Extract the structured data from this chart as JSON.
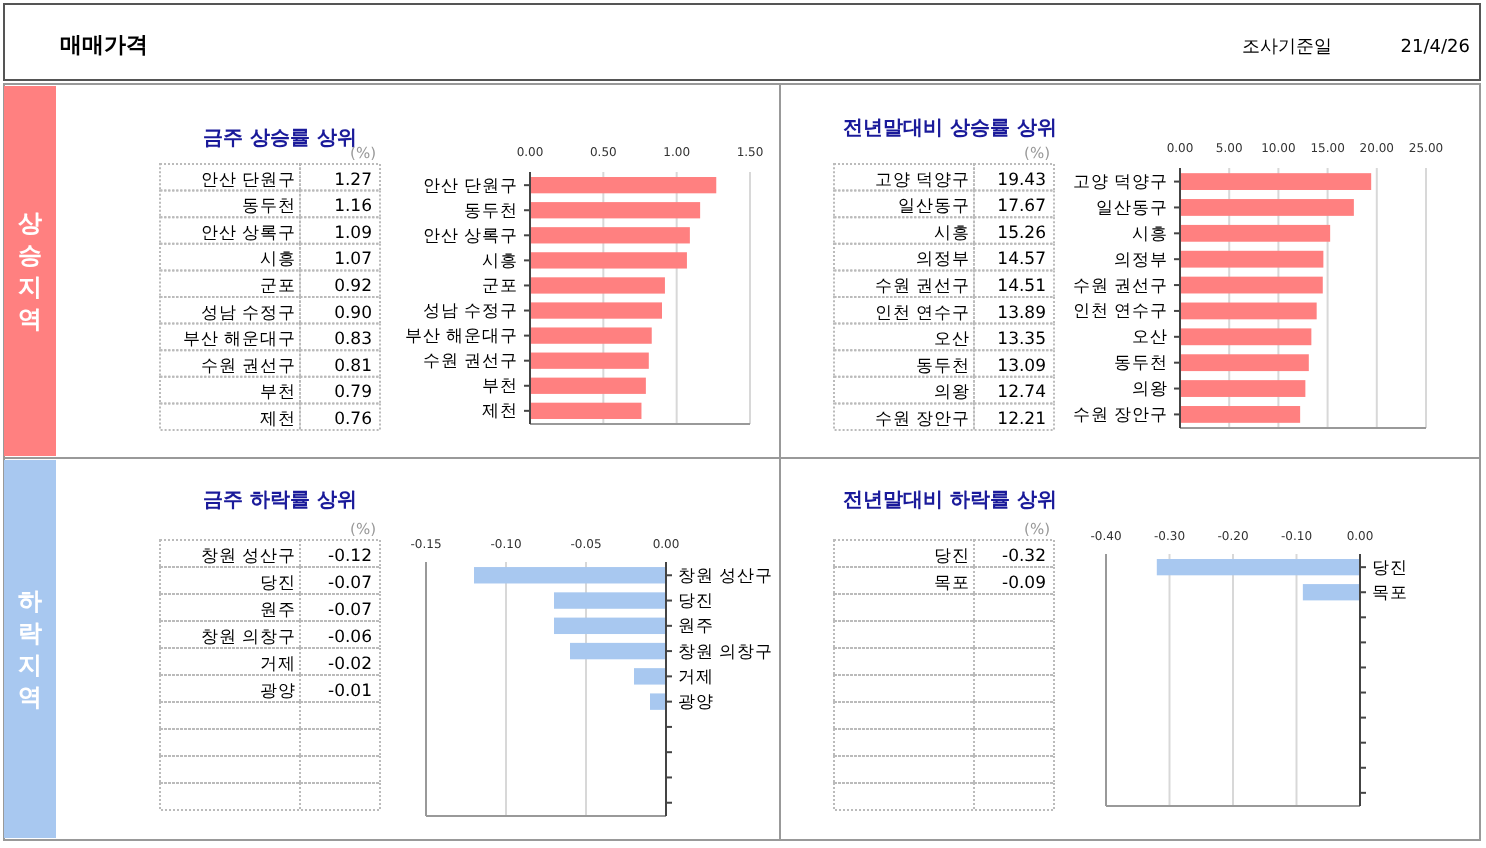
{
  "chart_data": [
    {
      "type": "bar",
      "orientation": "horizontal",
      "title": "금주 상승률 상위",
      "annotations": [
        "매매가격",
        "조사기준일",
        "21/4/26",
        "상승지역",
        "(%)"
      ],
      "categories": [
        "안산 단원구",
        "동두천",
        "안산 상록구",
        "시흥",
        "군포",
        "성남 수정구",
        "부산 해운대구",
        "수원 권선구",
        "부천",
        "제천"
      ],
      "values": [
        1.27,
        1.16,
        1.09,
        1.07,
        0.92,
        0.9,
        0.83,
        0.81,
        0.79,
        0.76
      ],
      "value_labels": [
        "1.27",
        "1.16",
        "1.09",
        "1.07",
        "0.92",
        "0.90",
        "0.83",
        "0.81",
        "0.79",
        "0.76"
      ],
      "color": "#ff8080",
      "xlim": [
        0,
        1.5
      ],
      "xticks": [
        {
          "value": 0,
          "label": "0.00"
        },
        {
          "value": 0.5,
          "label": "0.50"
        },
        {
          "value": 1,
          "label": "1.00"
        },
        {
          "value": 1.5,
          "label": "1.50"
        }
      ],
      "grid": "x"
    },
    {
      "type": "bar",
      "orientation": "horizontal",
      "title": "전년말대비 상승률 상위",
      "annotations": [
        "(%)"
      ],
      "categories": [
        "고양 덕양구",
        "일산동구",
        "시흥",
        "의정부",
        "수원 권선구",
        "인천 연수구",
        "오산",
        "동두천",
        "의왕",
        "수원 장안구"
      ],
      "values": [
        19.43,
        17.67,
        15.26,
        14.57,
        14.51,
        13.89,
        13.35,
        13.09,
        12.74,
        12.21
      ],
      "value_labels": [
        "19.43",
        "17.67",
        "15.26",
        "14.57",
        "14.51",
        "13.89",
        "13.35",
        "13.09",
        "12.74",
        "12.21"
      ],
      "color": "#ff8080",
      "xlim": [
        0,
        25
      ],
      "xticks": [
        {
          "value": 0,
          "label": "0.00"
        },
        {
          "value": 5,
          "label": "5.00"
        },
        {
          "value": 10,
          "label": "10.00"
        },
        {
          "value": 15,
          "label": "15.00"
        },
        {
          "value": 20,
          "label": "20.00"
        },
        {
          "value": 25,
          "label": "25.00"
        }
      ],
      "grid": "x"
    },
    {
      "type": "bar",
      "orientation": "horizontal",
      "title": "금주 하락률 상위",
      "annotations": [
        "하락지역",
        "(%)"
      ],
      "categories": [
        "창원 성산구",
        "당진",
        "원주",
        "창원 의창구",
        "거제",
        "광양",
        null,
        null,
        null,
        null
      ],
      "values": [
        -0.12,
        -0.07,
        -0.07,
        -0.06,
        -0.02,
        -0.01,
        null,
        null,
        null,
        null
      ],
      "value_labels": [
        "-0.12",
        "-0.07",
        "-0.07",
        "-0.06",
        "-0.02",
        "-0.01",
        null,
        null,
        null,
        null
      ],
      "color": "#a8c8f0",
      "xlim": [
        -0.15,
        0
      ],
      "xticks": [
        {
          "value": -0.15,
          "label": "-0.15"
        },
        {
          "value": -0.1,
          "label": "-0.10"
        },
        {
          "value": -0.05,
          "label": "-0.05"
        },
        {
          "value": 0,
          "label": "0.00"
        }
      ],
      "grid": "x"
    },
    {
      "type": "bar",
      "orientation": "horizontal",
      "title": "전년말대비 하락률 상위",
      "annotations": [
        "(%)"
      ],
      "categories": [
        "당진",
        "목포",
        null,
        null,
        null,
        null,
        null,
        null,
        null,
        null
      ],
      "values": [
        -0.32,
        -0.09,
        null,
        null,
        null,
        null,
        null,
        null,
        null,
        null
      ],
      "value_labels": [
        "-0.32",
        "-0.09",
        null,
        null,
        null,
        null,
        null,
        null,
        null,
        null
      ],
      "color": "#a8c8f0",
      "xlim": [
        -0.4,
        0
      ],
      "xticks": [
        {
          "value": -0.4,
          "label": "-0.40"
        },
        {
          "value": -0.3,
          "label": "-0.30"
        },
        {
          "value": -0.2,
          "label": "-0.20"
        },
        {
          "value": -0.1,
          "label": "-0.10"
        },
        {
          "value": 0,
          "label": "0.00"
        }
      ],
      "grid": "x"
    }
  ]
}
